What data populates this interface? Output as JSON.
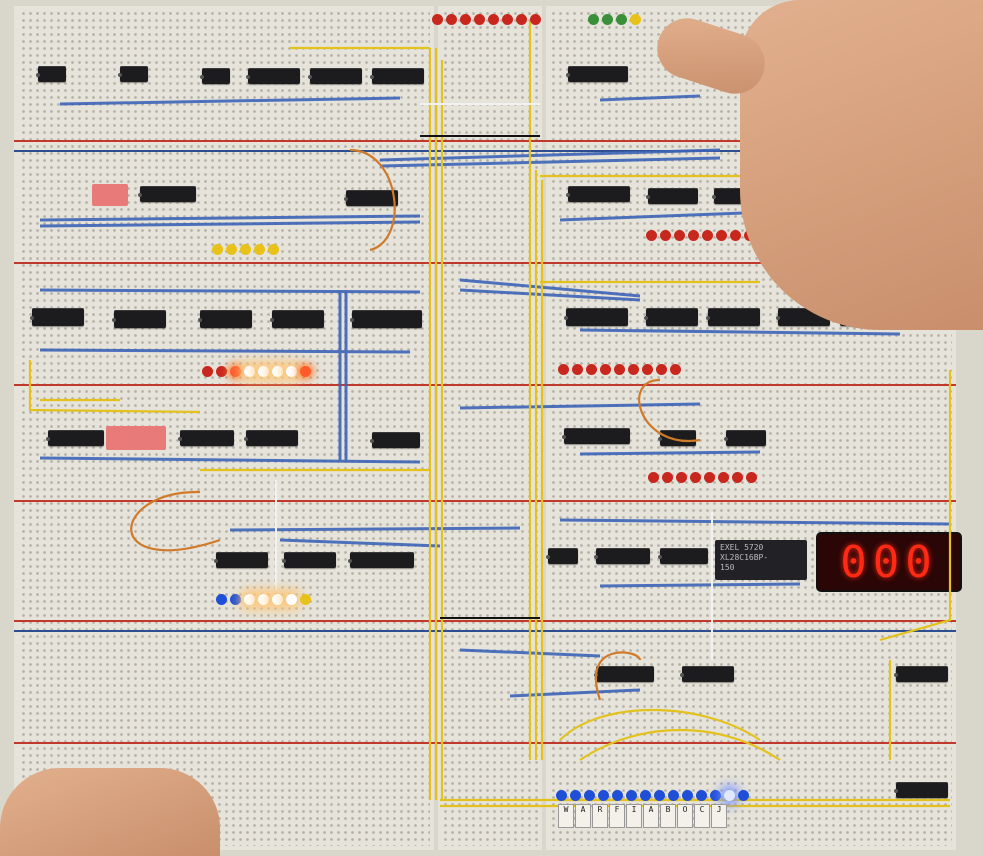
{
  "scene": {
    "subject": "breadboard-computer",
    "display_value": "000",
    "eeprom_label_lines": [
      "EXEL 5720",
      "XL28C16BP-",
      "150"
    ],
    "output_labels": [
      "W",
      "A",
      "R",
      "F",
      "I",
      "A",
      "B",
      "O",
      "C",
      "J"
    ],
    "colors": {
      "board": "#e6e3da",
      "blue_wire": "#3d64b8",
      "yellow_wire": "#e3c21e",
      "segment_red": "#ff2a14",
      "skin": "#d9a07c"
    }
  }
}
